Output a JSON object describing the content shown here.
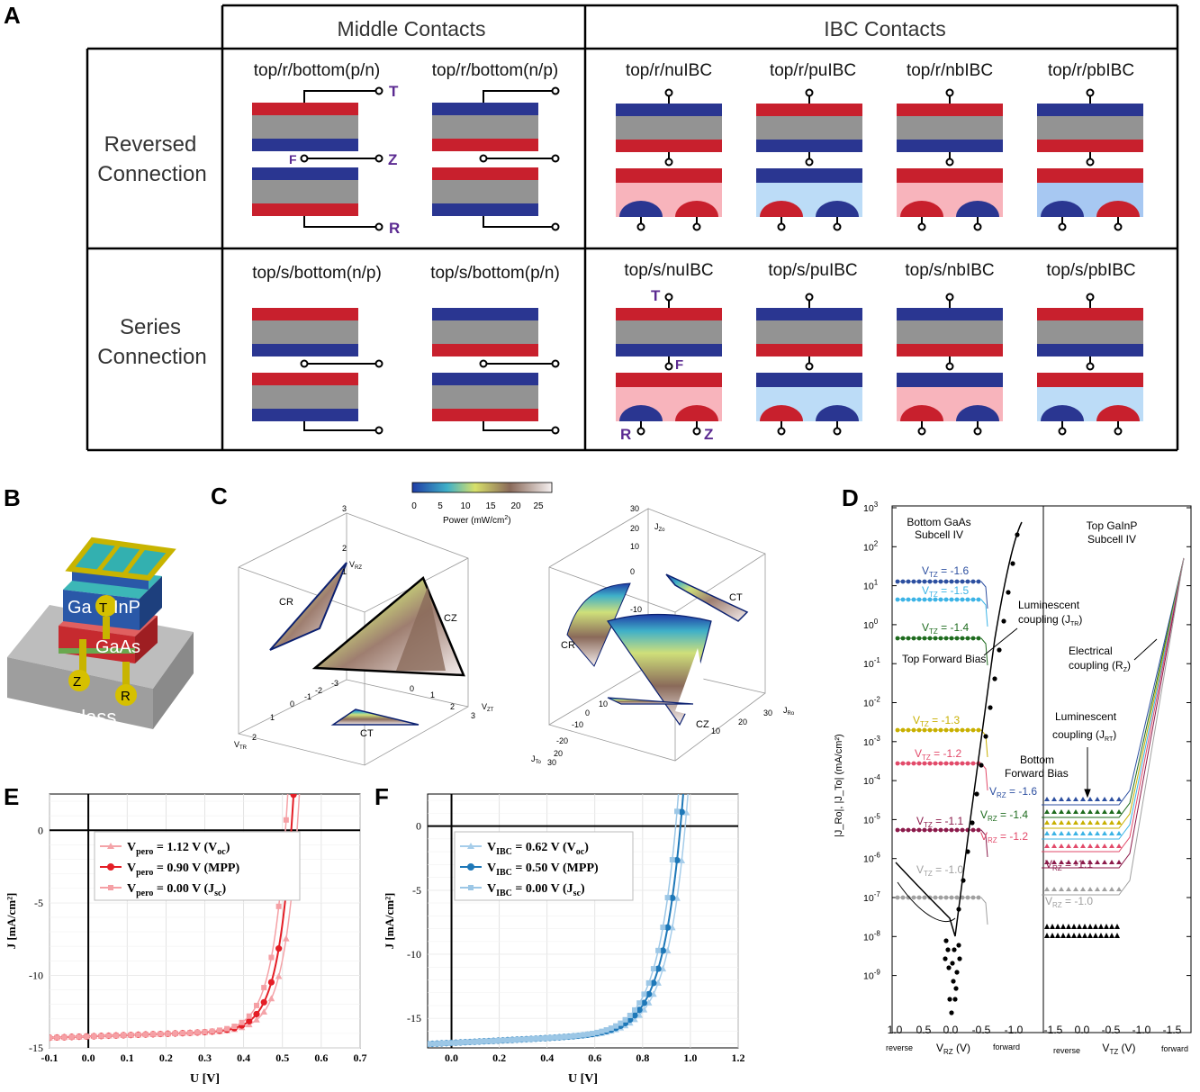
{
  "panels": {
    "a": "A",
    "b": "B",
    "c": "C",
    "d": "D",
    "e": "E",
    "f": "F"
  },
  "colors": {
    "blue": "#2a3691",
    "red": "#c8202d",
    "gray": "#939393",
    "pink": "#f8b4bc",
    "lightblue": "#bcdcf7",
    "purple": "#5b2a91"
  },
  "table": {
    "col_middle": "Middle Contacts",
    "col_ibc": "IBC Contacts",
    "row_reversed": [
      "Reversed",
      "Connection"
    ],
    "row_series": [
      "Series",
      "Connection"
    ],
    "reversed_cells": [
      "top/r/bottom(p/n)",
      "top/r/bottom(n/p)",
      "top/r/nuIBC",
      "top/r/puIBC",
      "top/r/nbIBC",
      "top/r/pbIBC"
    ],
    "series_cells": [
      "top/s/bottom(n/p)",
      "top/s/bottom(p/n)",
      "top/s/nuIBC",
      "top/s/puIBC",
      "top/s/nbIBC",
      "top/s/pbIBC"
    ],
    "terminal_labels": {
      "t": "T",
      "f": "F",
      "z": "Z",
      "r": "R"
    }
  },
  "panel_b": {
    "ga": "Ga",
    "t": "T",
    "inp": "InP",
    "gaas": "GaAs",
    "z": "Z",
    "r": "R",
    "glass": "glass"
  },
  "panel_c": {
    "colorbar_ticks": [
      "0",
      "5",
      "10",
      "15",
      "20",
      "25"
    ],
    "colorbar_label": "Power (mW/cm",
    "left": {
      "cr": "CR",
      "cz": "CZ",
      "ct": "CT"
    },
    "right": {
      "cr": "CR",
      "ct": "CT",
      "cz": "CZ"
    }
  },
  "panel_d": {
    "left_title": [
      "Bottom GaAs",
      "Subcell IV"
    ],
    "right_title": [
      "Top GaInP",
      "Subcell IV"
    ],
    "y_ticks": [
      "10^3",
      "10^2",
      "10^1",
      "10^0",
      "10^-1",
      "10^-2",
      "10^-3",
      "10^-4",
      "10^-5",
      "10^-6",
      "10^-7",
      "10^-8",
      "10^-9"
    ],
    "y_label": "|J_Ro|, |J_To| (mA/cm²)",
    "x_ticks_left": [
      "1.0",
      "0.5",
      "0.0",
      "-0.5",
      "-1.0"
    ],
    "x_ticks_right": [
      "-1.5",
      "0.0",
      "-0.5",
      "-1.0",
      "-1.5"
    ],
    "x_label_left": "V_RZ (V)",
    "x_label_right": "V_TZ (V)",
    "reverse": "reverse",
    "forward": "forward",
    "left_series_labels": [
      "-1.6",
      "-1.5",
      "-1.4",
      "-1.3",
      "-1.2",
      "-1.1",
      "-1.0"
    ],
    "right_series_labels": [
      "-1.6",
      "-1.4",
      "-1.2",
      "-1.1",
      "-1.0"
    ],
    "ann": {
      "lum1": [
        "Luminescent",
        "coupling (J"
      ],
      "tfb": "Top Forward Bias",
      "elec": [
        "Electrical",
        "coupling (R"
      ],
      "lum2": [
        "Luminescent",
        "coupling (J"
      ],
      "bfb": [
        "Bottom",
        "Forward Bias"
      ]
    }
  },
  "chart_data": [
    {
      "type": "line",
      "panel": "E",
      "xlabel": "U [V]",
      "ylabel": "J [mA/cm²]",
      "xlim": [
        -0.1,
        0.7
      ],
      "ylim": [
        -15,
        2.5
      ],
      "x_ticks": [
        "-0.1",
        "0.0",
        "0.1",
        "0.2",
        "0.3",
        "0.4",
        "0.5",
        "0.6",
        "0.7"
      ],
      "y_ticks": [
        "0",
        "-5",
        "-10",
        "-15"
      ],
      "legend_placement": "top-left",
      "series": [
        {
          "name": "V_pero = 1.12 V (V_oc)",
          "color": "#f4a3a8",
          "marker": "triangle",
          "jsc": 14.3,
          "x0": 0.4,
          "s": 0.036
        },
        {
          "name": "V_pero = 0.90 V (MPP)",
          "color": "#e41e26",
          "marker": "circle",
          "jsc": 14.3,
          "x0": 0.385,
          "s": 0.036
        },
        {
          "name": "V_pero = 0.00 V (J_sc)",
          "color": "#f5a0a5",
          "marker": "square",
          "jsc": 14.3,
          "x0": 0.37,
          "s": 0.036
        }
      ]
    },
    {
      "type": "line",
      "panel": "F",
      "xlabel": "U [V]",
      "ylabel": "J [mA/cm²]",
      "xlim": [
        -0.1,
        1.2
      ],
      "ylim": [
        -17.3,
        2.5
      ],
      "x_ticks": [
        "0.0",
        "0.2",
        "0.4",
        "0.6",
        "0.8",
        "1.0",
        "1.2"
      ],
      "y_ticks": [
        "0",
        "-5",
        "-10",
        "-15"
      ],
      "legend_placement": "top-left",
      "series": [
        {
          "name": "V_IBC = 0.62 V (V_oc)",
          "color": "#a6cdea",
          "marker": "triangle",
          "jsc": 17.0,
          "x0": 0.66,
          "s": 0.08
        },
        {
          "name": "V_IBC = 0.50 V (MPP)",
          "color": "#1e78b8",
          "marker": "circle",
          "jsc": 17.0,
          "x0": 0.64,
          "s": 0.08
        },
        {
          "name": "V_IBC = 0.00 V (J_sc)",
          "color": "#9cc7e6",
          "marker": "square",
          "jsc": 17.0,
          "x0": 0.62,
          "s": 0.08
        }
      ]
    }
  ]
}
